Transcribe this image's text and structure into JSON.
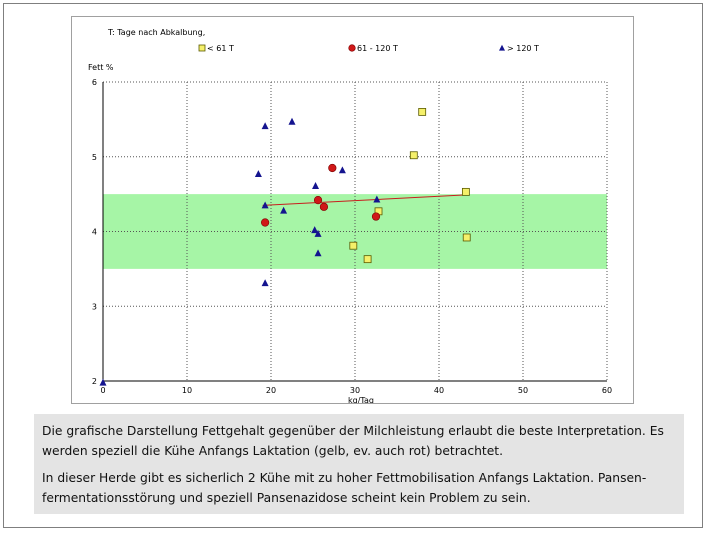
{
  "chart_data": {
    "type": "scatter",
    "note": "T: Tage nach Abkalbung,",
    "ylabel": "Fett %",
    "xlabel": "kg/Tag",
    "xlim": [
      0,
      60
    ],
    "ylim": [
      2,
      6
    ],
    "xticks": [
      "0",
      "10",
      "20",
      "30",
      "40",
      "50",
      "60"
    ],
    "yticks": [
      "2",
      "3",
      "4",
      "5",
      "6"
    ],
    "grid": true,
    "legend_position": "top",
    "reference_band": {
      "y_from": 3.5,
      "y_to": 4.5,
      "color": "#a6f5a6"
    },
    "series": [
      {
        "name": "< 61 T",
        "marker": "square",
        "color": "#f5f06a",
        "points": [
          [
            38,
            5.6
          ],
          [
            37,
            5.02
          ],
          [
            43.2,
            4.53
          ],
          [
            32.8,
            4.27
          ],
          [
            29.8,
            3.81
          ],
          [
            31.5,
            3.63
          ],
          [
            43.3,
            3.92
          ]
        ]
      },
      {
        "name": "61 - 120 T",
        "marker": "circle",
        "color": "#d01818",
        "points": [
          [
            27.3,
            4.85
          ],
          [
            25.6,
            4.42
          ],
          [
            26.3,
            4.33
          ],
          [
            32.5,
            4.2
          ],
          [
            19.3,
            4.12
          ]
        ]
      },
      {
        "name": "> 120 T",
        "marker": "triangle",
        "color": "#14148f",
        "points": [
          [
            19.3,
            5.41
          ],
          [
            22.5,
            5.47
          ],
          [
            18.5,
            4.77
          ],
          [
            28.5,
            4.82
          ],
          [
            25.3,
            4.61
          ],
          [
            32.6,
            4.43
          ],
          [
            19.3,
            4.35
          ],
          [
            21.5,
            4.28
          ],
          [
            25.2,
            4.02
          ],
          [
            25.6,
            3.97
          ],
          [
            25.6,
            3.71
          ],
          [
            19.3,
            3.31
          ],
          [
            0,
            1.98
          ]
        ]
      }
    ],
    "trendline": {
      "color": "#c81e1e",
      "points": [
        [
          19,
          4.35
        ],
        [
          43.2,
          4.49
        ]
      ]
    },
    "colors": {
      "grid": "#555555",
      "axis_text": "#000000"
    }
  },
  "description": {
    "paragraph1": "Die grafische Darstellung Fettgehalt gegenüber der Milchleistung erlaubt die beste Interpretation. Es werden speziell die Kühe Anfangs Laktation (gelb, ev. auch rot) betrachtet.",
    "paragraph2": "In dieser Herde gibt es sicherlich 2 Kühe mit zu hoher Fettmobilisation Anfangs Laktation. Pansen-fermentationsstörung und speziell Pansenazidose scheint kein Problem zu sein."
  }
}
